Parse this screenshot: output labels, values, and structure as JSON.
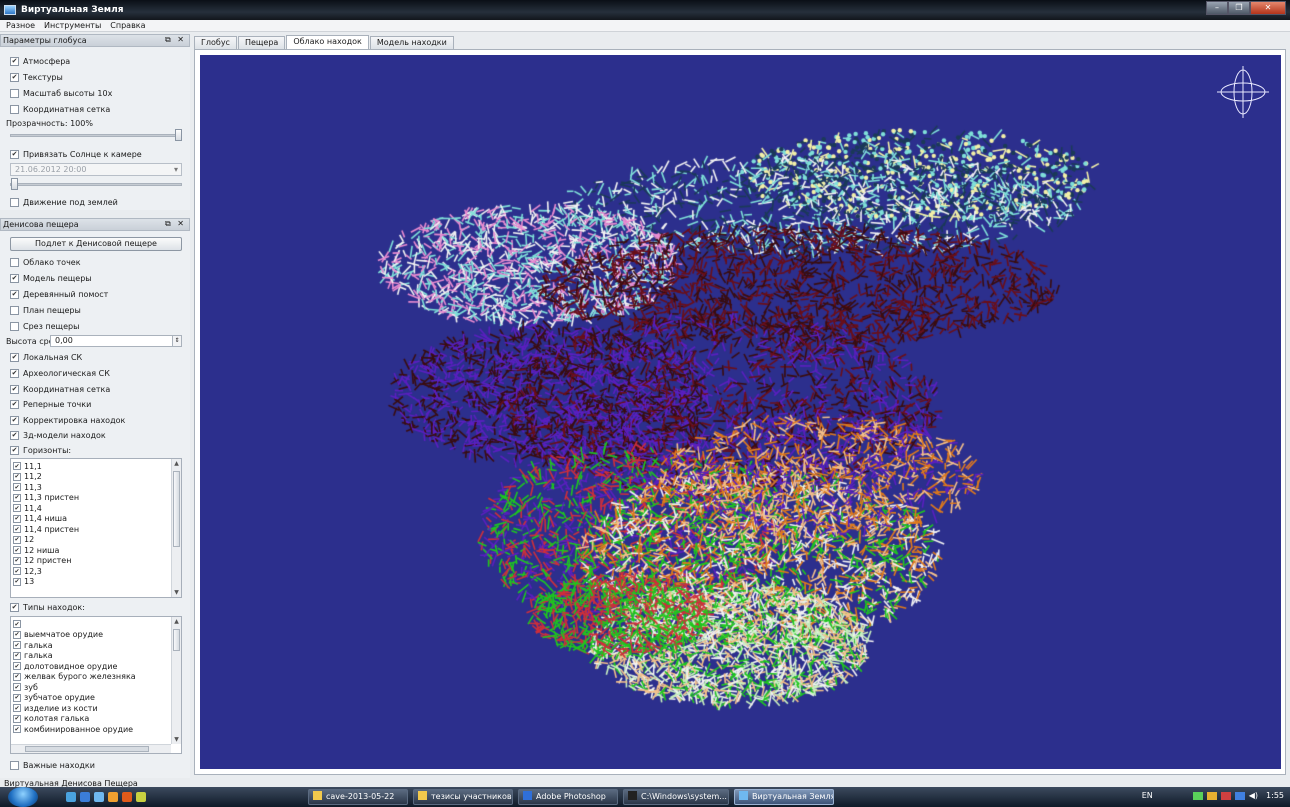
{
  "window": {
    "title": "Виртуальная Земля"
  },
  "menu": [
    "Разное",
    "Инструменты",
    "Справка"
  ],
  "globe_panel": {
    "title": "Параметры глобуса",
    "atmosphere": "Атмосфера",
    "textures": "Текстуры",
    "height_scale": "Масштаб высоты 10х",
    "grid": "Координатная сетка",
    "transparency": "Прозрачность: 100%",
    "transparency_value": 1.0,
    "bind_sun": "Привязать Солнце к камере",
    "datetime": "21.06.2012 20:00",
    "underground": "Движение под землей"
  },
  "cave_panel": {
    "title": "Денисова пещера",
    "fly_button": "Подлет к Денисовой пещере",
    "options": [
      {
        "label": "Облако точек",
        "checked": false
      },
      {
        "label": "Модель пещеры",
        "checked": true
      },
      {
        "label": "Деревянный помост",
        "checked": true
      },
      {
        "label": "План пещеры",
        "checked": false
      },
      {
        "label": "Срез пещеры",
        "checked": false
      }
    ],
    "slice_label": "Высота среза:",
    "slice_value": "0,00",
    "options2": [
      {
        "label": "Локальная СК",
        "checked": true
      },
      {
        "label": "Археологическая СК",
        "checked": true
      },
      {
        "label": "Координатная сетка",
        "checked": true
      },
      {
        "label": "Реперные точки",
        "checked": true
      },
      {
        "label": "Корректировка находок",
        "checked": true
      },
      {
        "label": "3д-модели находок",
        "checked": true
      },
      {
        "label": "Горизонты:",
        "checked": true
      }
    ],
    "horizons": [
      "11,1",
      "11,2",
      "11,3",
      "11,3 пристен",
      "11,4",
      "11,4 ниша",
      "11,4 пристен",
      "12",
      "12 ниша",
      "12 пристен",
      "12,3",
      "13"
    ],
    "types_label": "Типы находок:",
    "types": [
      "",
      "выемчатое орудие",
      "галька",
      "галька",
      "долотовидное орудие",
      "желвак бурого железняка",
      "зуб",
      "зубчатое орудие",
      "изделие из кости",
      "колотая галька",
      "комбинированное орудие"
    ],
    "important": "Важные находки"
  },
  "tabs": [
    "Глобус",
    "Пещера",
    "Облако находок",
    "Модель находки"
  ],
  "active_tab": 2,
  "status": "Виртуальная Денисова Пещера",
  "taskbar": {
    "buttons": [
      "cave-2013-05-22",
      "тезисы участников",
      "Adobe Photoshop",
      "C:\\Windows\\system...",
      "Виртуальная Земля"
    ],
    "lang": "EN",
    "time": "1:55"
  },
  "colors": {
    "viewport_bg": "#2c2f8d",
    "point_cloud": [
      "#f2f0a8",
      "#7fe0d8",
      "#1b3a58",
      "#e98bd0",
      "#6b0f18",
      "#3a0d0f",
      "#5b1fc0",
      "#cf2f3a",
      "#1ec81e",
      "#e07a1a",
      "#f4c08a",
      "#c9f0c0",
      "#f3f3f3"
    ]
  }
}
